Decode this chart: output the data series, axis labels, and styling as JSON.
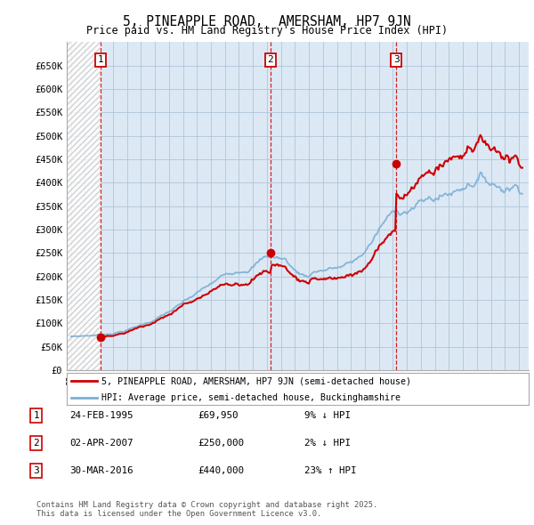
{
  "title": "5, PINEAPPLE ROAD,  AMERSHAM, HP7 9JN",
  "subtitle": "Price paid vs. HM Land Registry's House Price Index (HPI)",
  "ylim": [
    0,
    700000
  ],
  "yticks": [
    0,
    50000,
    100000,
    150000,
    200000,
    250000,
    300000,
    350000,
    400000,
    450000,
    500000,
    550000,
    600000,
    650000
  ],
  "ytick_labels": [
    "£0",
    "£50K",
    "£100K",
    "£150K",
    "£200K",
    "£250K",
    "£300K",
    "£350K",
    "£400K",
    "£450K",
    "£500K",
    "£550K",
    "£600K",
    "£650K"
  ],
  "line1_color": "#cc0000",
  "line2_color": "#7bafd4",
  "purchase_times": [
    1995.122,
    2007.253,
    2016.247
  ],
  "purchase_prices": [
    69950,
    250000,
    440000
  ],
  "purchase_labels": [
    "1",
    "2",
    "3"
  ],
  "legend_line1": "5, PINEAPPLE ROAD, AMERSHAM, HP7 9JN (semi-detached house)",
  "legend_line2": "HPI: Average price, semi-detached house, Buckinghamshire",
  "table_entries": [
    {
      "num": "1",
      "date": "24-FEB-1995",
      "price": "£69,950",
      "hpi": "9% ↓ HPI"
    },
    {
      "num": "2",
      "date": "02-APR-2007",
      "price": "£250,000",
      "hpi": "2% ↓ HPI"
    },
    {
      "num": "3",
      "date": "30-MAR-2016",
      "price": "£440,000",
      "hpi": "23% ↑ HPI"
    }
  ],
  "footnote": "Contains HM Land Registry data © Crown copyright and database right 2025.\nThis data is licensed under the Open Government Licence v3.0.",
  "background_color": "#ffffff",
  "chart_bg_color": "#dce9f5",
  "grid_color": "#b0c4d8",
  "vline_color": "#cc0000",
  "hatch_color": "#c8c8c8"
}
